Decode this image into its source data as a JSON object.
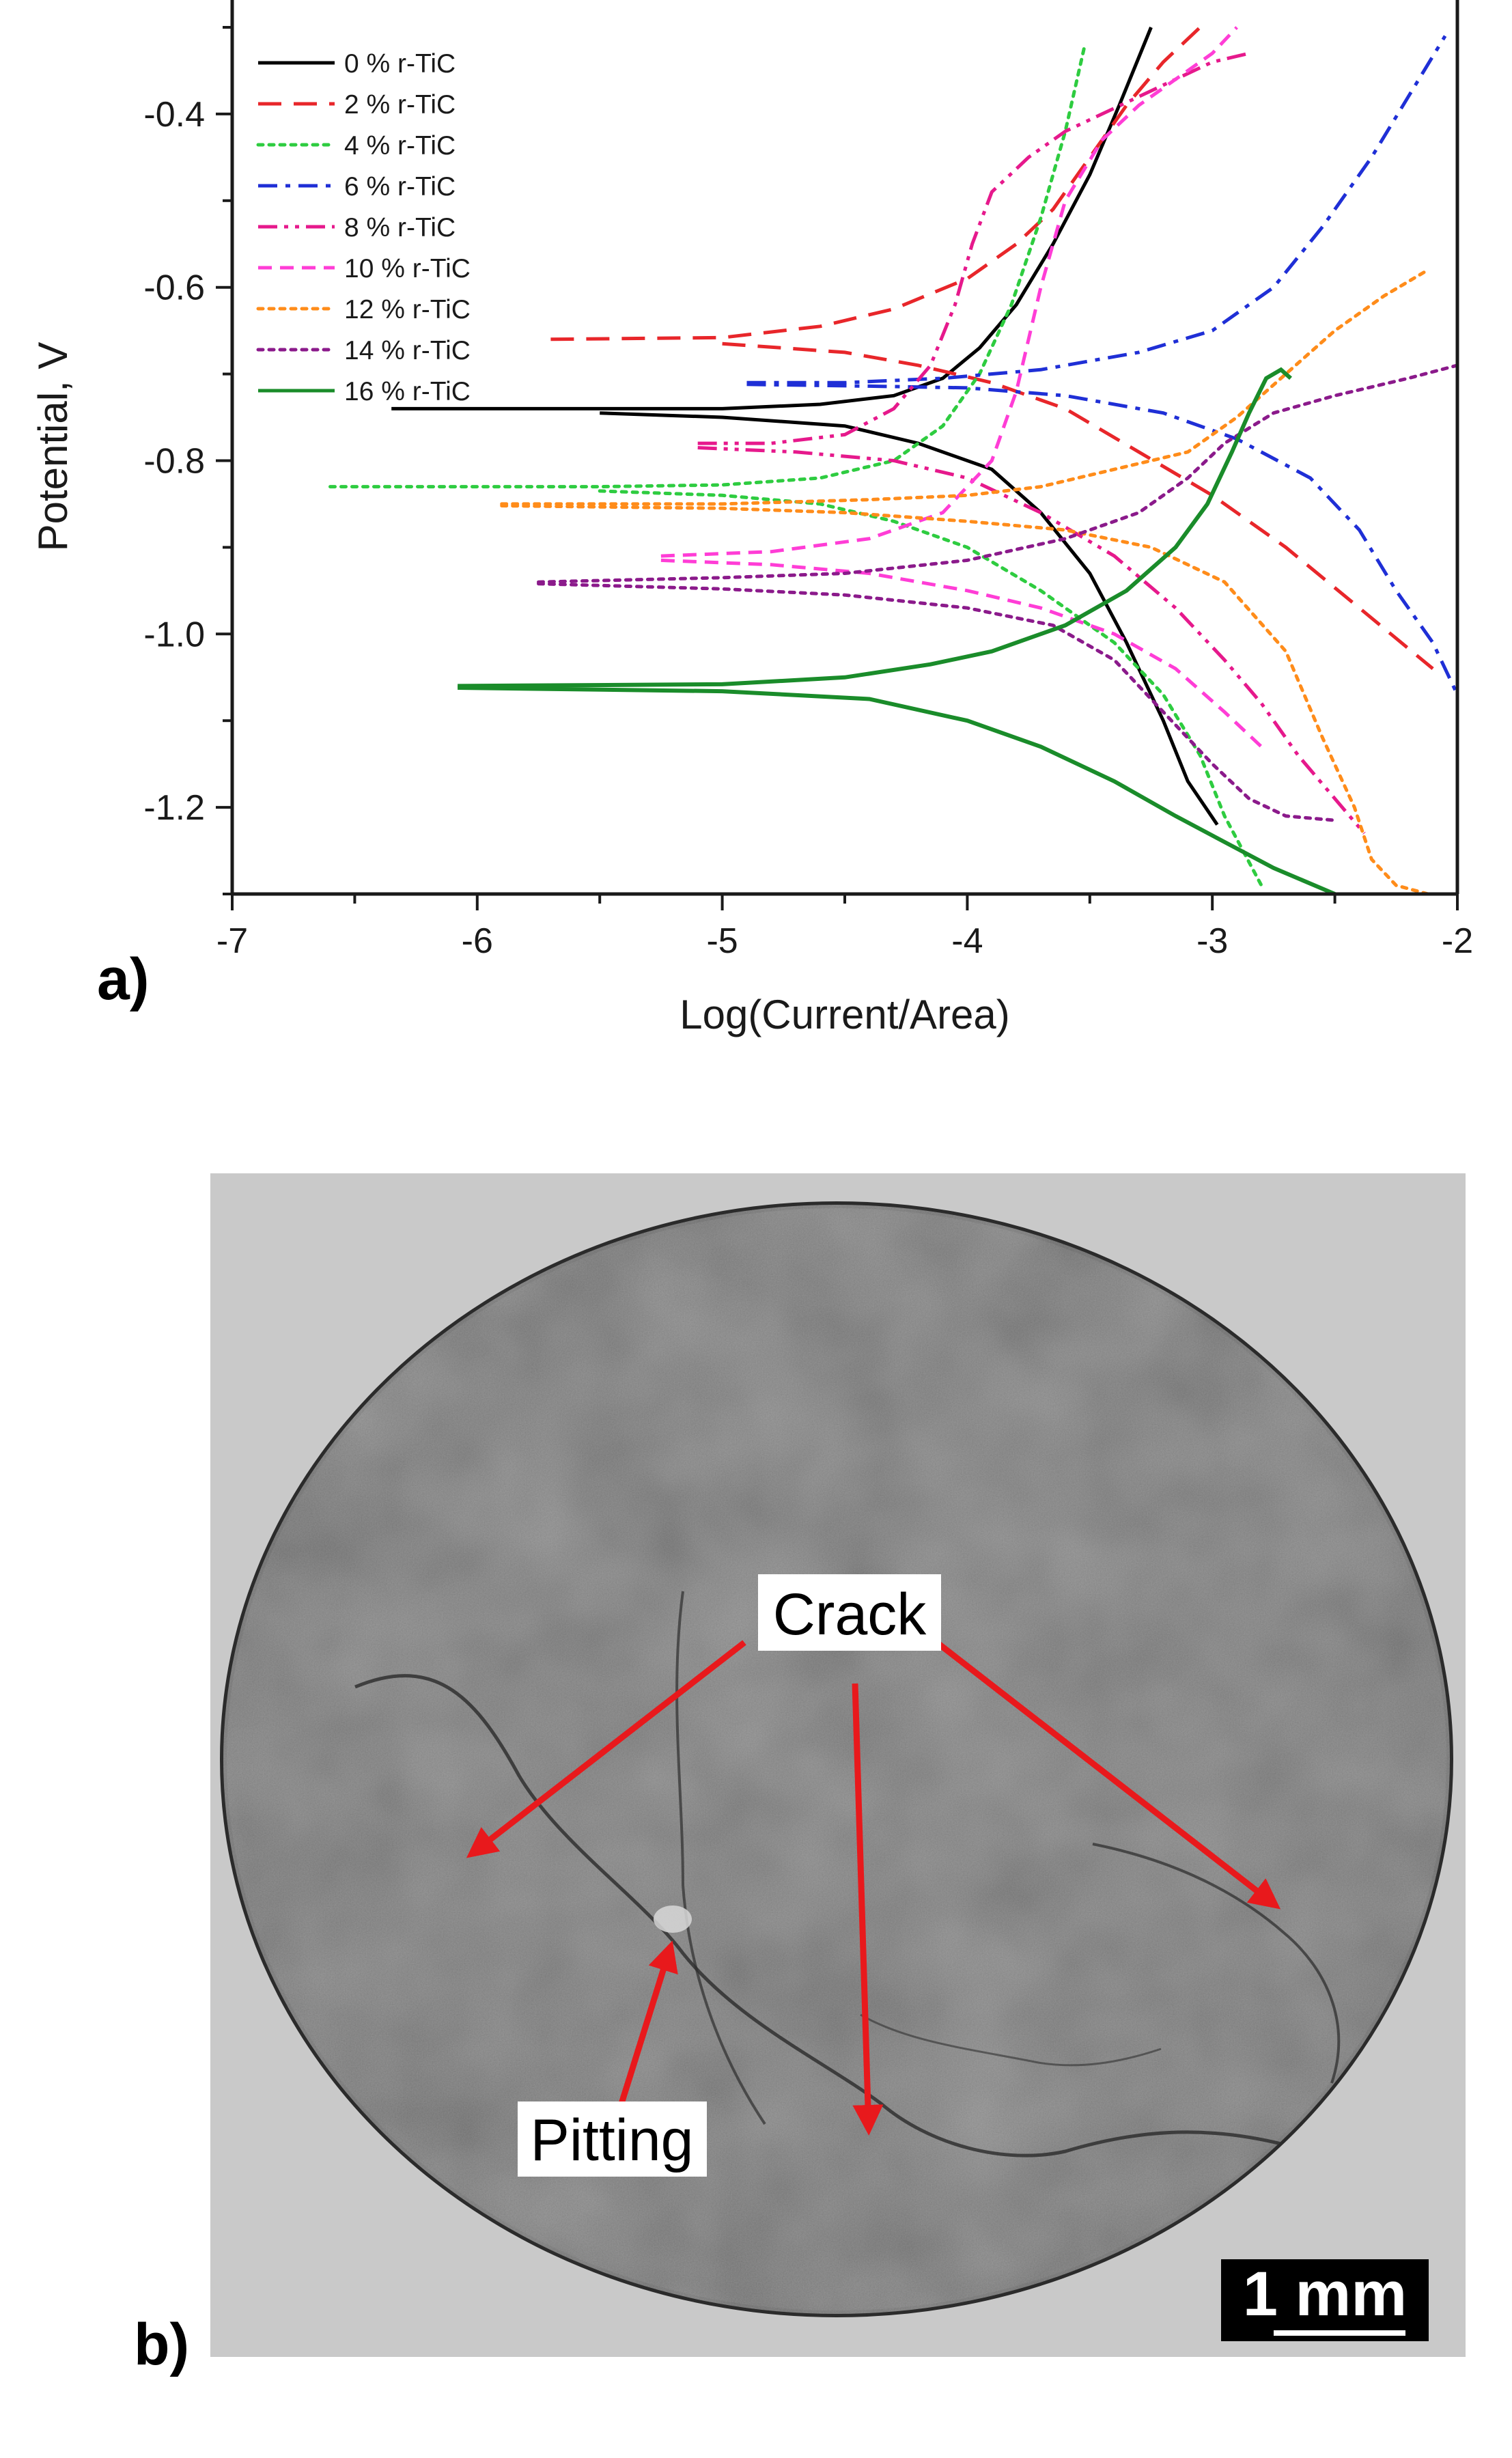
{
  "figure": {
    "panel_a_label": "a)",
    "panel_b_label": "b)"
  },
  "chart_data": {
    "type": "line",
    "title": "",
    "xlabel": "Log(Current/Area)",
    "ylabel": "Potential, V",
    "xlim": [
      -7,
      -2
    ],
    "ylim": [
      -1.3,
      -0.3
    ],
    "xticks": [
      -7,
      -6,
      -5,
      -4,
      -3,
      -2
    ],
    "yticks": [
      -1.2,
      -1.0,
      -0.8,
      -0.6,
      -0.4
    ],
    "ytick_labels": [
      "-1.2",
      "-1.0",
      "-0.8",
      "-0.6",
      "-0.4"
    ],
    "legend_position": "top-left",
    "grid": false,
    "series": [
      {
        "name": "0 % r-TiC",
        "color": "#000000",
        "dash": "solid",
        "anodic": [
          [
            -6.35,
            -0.74
          ],
          [
            -5.5,
            -0.74
          ],
          [
            -5.0,
            -0.74
          ],
          [
            -4.6,
            -0.735
          ],
          [
            -4.3,
            -0.725
          ],
          [
            -4.1,
            -0.705
          ],
          [
            -3.95,
            -0.67
          ],
          [
            -3.8,
            -0.62
          ],
          [
            -3.65,
            -0.55
          ],
          [
            -3.5,
            -0.47
          ],
          [
            -3.38,
            -0.39
          ],
          [
            -3.25,
            -0.3
          ]
        ],
        "cathodic": [
          [
            -5.5,
            -0.745
          ],
          [
            -5.0,
            -0.75
          ],
          [
            -4.5,
            -0.76
          ],
          [
            -4.2,
            -0.78
          ],
          [
            -3.9,
            -0.81
          ],
          [
            -3.7,
            -0.86
          ],
          [
            -3.5,
            -0.93
          ],
          [
            -3.35,
            -1.01
          ],
          [
            -3.2,
            -1.1
          ],
          [
            -3.1,
            -1.17
          ],
          [
            -2.98,
            -1.22
          ]
        ]
      },
      {
        "name": "2 % r-TiC",
        "color": "#e8262a",
        "dash": "long-dash",
        "anodic": [
          [
            -5.7,
            -0.66
          ],
          [
            -5.0,
            -0.658
          ],
          [
            -4.6,
            -0.645
          ],
          [
            -4.3,
            -0.625
          ],
          [
            -4.0,
            -0.59
          ],
          [
            -3.8,
            -0.55
          ],
          [
            -3.65,
            -0.51
          ],
          [
            -3.5,
            -0.45
          ],
          [
            -3.35,
            -0.39
          ],
          [
            -3.2,
            -0.34
          ],
          [
            -3.05,
            -0.3
          ]
        ],
        "cathodic": [
          [
            -5.0,
            -0.665
          ],
          [
            -4.5,
            -0.675
          ],
          [
            -4.2,
            -0.69
          ],
          [
            -3.9,
            -0.71
          ],
          [
            -3.6,
            -0.74
          ],
          [
            -3.3,
            -0.79
          ],
          [
            -3.0,
            -0.84
          ],
          [
            -2.7,
            -0.9
          ],
          [
            -2.4,
            -0.97
          ],
          [
            -2.1,
            -1.04
          ]
        ]
      },
      {
        "name": "4 % r-TiC",
        "color": "#2ecc40",
        "dash": "dot",
        "anodic": [
          [
            -6.6,
            -0.83
          ],
          [
            -5.5,
            -0.83
          ],
          [
            -5.0,
            -0.828
          ],
          [
            -4.6,
            -0.82
          ],
          [
            -4.3,
            -0.8
          ],
          [
            -4.1,
            -0.76
          ],
          [
            -3.95,
            -0.7
          ],
          [
            -3.82,
            -0.62
          ],
          [
            -3.7,
            -0.52
          ],
          [
            -3.6,
            -0.42
          ],
          [
            -3.52,
            -0.32
          ]
        ],
        "cathodic": [
          [
            -5.5,
            -0.835
          ],
          [
            -5.0,
            -0.84
          ],
          [
            -4.6,
            -0.85
          ],
          [
            -4.3,
            -0.87
          ],
          [
            -4.0,
            -0.9
          ],
          [
            -3.7,
            -0.95
          ],
          [
            -3.4,
            -1.01
          ],
          [
            -3.2,
            -1.07
          ],
          [
            -3.05,
            -1.14
          ],
          [
            -2.95,
            -1.21
          ],
          [
            -2.8,
            -1.29
          ]
        ]
      },
      {
        "name": "6 % r-TiC",
        "color": "#1f2fd6",
        "dash": "dash-dot",
        "anodic": [
          [
            -4.9,
            -0.71
          ],
          [
            -4.5,
            -0.71
          ],
          [
            -4.1,
            -0.705
          ],
          [
            -3.7,
            -0.695
          ],
          [
            -3.3,
            -0.675
          ],
          [
            -3.0,
            -0.65
          ],
          [
            -2.75,
            -0.6
          ],
          [
            -2.55,
            -0.53
          ],
          [
            -2.35,
            -0.45
          ],
          [
            -2.2,
            -0.38
          ],
          [
            -2.05,
            -0.31
          ]
        ],
        "cathodic": [
          [
            -4.9,
            -0.712
          ],
          [
            -4.4,
            -0.714
          ],
          [
            -4.0,
            -0.716
          ],
          [
            -3.6,
            -0.725
          ],
          [
            -3.2,
            -0.745
          ],
          [
            -2.9,
            -0.775
          ],
          [
            -2.6,
            -0.82
          ],
          [
            -2.4,
            -0.88
          ],
          [
            -2.25,
            -0.95
          ],
          [
            -2.1,
            -1.01
          ],
          [
            -2.0,
            -1.07
          ]
        ]
      },
      {
        "name": "8 % r-TiC",
        "color": "#e6198c",
        "dash": "dash-dot-dot",
        "anodic": [
          [
            -5.1,
            -0.78
          ],
          [
            -4.8,
            -0.78
          ],
          [
            -4.5,
            -0.77
          ],
          [
            -4.3,
            -0.74
          ],
          [
            -4.15,
            -0.69
          ],
          [
            -4.05,
            -0.62
          ],
          [
            -3.98,
            -0.55
          ],
          [
            -3.9,
            -0.49
          ],
          [
            -3.75,
            -0.45
          ],
          [
            -3.6,
            -0.42
          ],
          [
            -3.45,
            -0.4
          ],
          [
            -3.3,
            -0.38
          ],
          [
            -3.15,
            -0.36
          ],
          [
            -3.0,
            -0.34
          ],
          [
            -2.85,
            -0.33
          ]
        ],
        "cathodic": [
          [
            -5.1,
            -0.785
          ],
          [
            -4.7,
            -0.79
          ],
          [
            -4.3,
            -0.8
          ],
          [
            -4.0,
            -0.82
          ],
          [
            -3.7,
            -0.86
          ],
          [
            -3.4,
            -0.91
          ],
          [
            -3.15,
            -0.97
          ],
          [
            -2.95,
            -1.03
          ],
          [
            -2.8,
            -1.08
          ],
          [
            -2.65,
            -1.14
          ],
          [
            -2.5,
            -1.19
          ],
          [
            -2.38,
            -1.23
          ]
        ]
      },
      {
        "name": "10 % r-TiC",
        "color": "#ff3dd6",
        "dash": "dash",
        "anodic": [
          [
            -5.25,
            -0.91
          ],
          [
            -4.8,
            -0.905
          ],
          [
            -4.4,
            -0.89
          ],
          [
            -4.1,
            -0.86
          ],
          [
            -3.9,
            -0.8
          ],
          [
            -3.8,
            -0.72
          ],
          [
            -3.7,
            -0.6
          ],
          [
            -3.6,
            -0.5
          ],
          [
            -3.45,
            -0.43
          ],
          [
            -3.3,
            -0.39
          ],
          [
            -3.15,
            -0.36
          ],
          [
            -3.0,
            -0.33
          ],
          [
            -2.9,
            -0.3
          ]
        ],
        "cathodic": [
          [
            -5.25,
            -0.915
          ],
          [
            -4.8,
            -0.92
          ],
          [
            -4.4,
            -0.93
          ],
          [
            -4.0,
            -0.95
          ],
          [
            -3.7,
            -0.97
          ],
          [
            -3.4,
            -1.0
          ],
          [
            -3.15,
            -1.04
          ],
          [
            -2.95,
            -1.09
          ],
          [
            -2.8,
            -1.13
          ]
        ]
      },
      {
        "name": "12 % r-TiC",
        "color": "#ff8c1a",
        "dash": "dot",
        "anodic": [
          [
            -5.9,
            -0.85
          ],
          [
            -5.0,
            -0.85
          ],
          [
            -4.4,
            -0.845
          ],
          [
            -4.0,
            -0.84
          ],
          [
            -3.7,
            -0.83
          ],
          [
            -3.4,
            -0.81
          ],
          [
            -3.1,
            -0.79
          ],
          [
            -2.9,
            -0.75
          ],
          [
            -2.7,
            -0.7
          ],
          [
            -2.5,
            -0.65
          ],
          [
            -2.3,
            -0.61
          ],
          [
            -2.12,
            -0.58
          ]
        ],
        "cathodic": [
          [
            -5.9,
            -0.852
          ],
          [
            -5.0,
            -0.855
          ],
          [
            -4.5,
            -0.86
          ],
          [
            -4.0,
            -0.87
          ],
          [
            -3.6,
            -0.88
          ],
          [
            -3.25,
            -0.9
          ],
          [
            -2.95,
            -0.94
          ],
          [
            -2.7,
            -1.02
          ],
          [
            -2.55,
            -1.12
          ],
          [
            -2.42,
            -1.2
          ],
          [
            -2.35,
            -1.26
          ],
          [
            -2.25,
            -1.29
          ],
          [
            -2.12,
            -1.3
          ]
        ]
      },
      {
        "name": "14 % r-TiC",
        "color": "#8b1a8b",
        "dash": "dot",
        "anodic": [
          [
            -5.75,
            -0.94
          ],
          [
            -5.0,
            -0.935
          ],
          [
            -4.5,
            -0.93
          ],
          [
            -4.0,
            -0.915
          ],
          [
            -3.6,
            -0.89
          ],
          [
            -3.3,
            -0.86
          ],
          [
            -3.1,
            -0.82
          ],
          [
            -2.95,
            -0.78
          ],
          [
            -2.75,
            -0.745
          ],
          [
            -2.5,
            -0.725
          ],
          [
            -2.2,
            -0.705
          ],
          [
            -2.0,
            -0.69
          ]
        ],
        "cathodic": [
          [
            -5.75,
            -0.942
          ],
          [
            -5.0,
            -0.948
          ],
          [
            -4.5,
            -0.955
          ],
          [
            -4.0,
            -0.97
          ],
          [
            -3.65,
            -0.99
          ],
          [
            -3.4,
            -1.03
          ],
          [
            -3.2,
            -1.09
          ],
          [
            -3.0,
            -1.15
          ],
          [
            -2.85,
            -1.19
          ],
          [
            -2.7,
            -1.21
          ],
          [
            -2.5,
            -1.215
          ]
        ]
      },
      {
        "name": "16 % r-TiC",
        "color": "#1a8c2a",
        "dash": "solid",
        "anodic": [
          [
            -6.08,
            -1.06
          ],
          [
            -5.0,
            -1.058
          ],
          [
            -4.5,
            -1.05
          ],
          [
            -4.15,
            -1.035
          ],
          [
            -3.9,
            -1.02
          ],
          [
            -3.6,
            -0.99
          ],
          [
            -3.35,
            -0.95
          ],
          [
            -3.15,
            -0.9
          ],
          [
            -3.02,
            -0.85
          ],
          [
            -2.92,
            -0.79
          ],
          [
            -2.85,
            -0.745
          ],
          [
            -2.78,
            -0.705
          ],
          [
            -2.72,
            -0.695
          ],
          [
            -2.68,
            -0.705
          ]
        ],
        "cathodic": [
          [
            -6.08,
            -1.062
          ],
          [
            -5.0,
            -1.066
          ],
          [
            -4.4,
            -1.075
          ],
          [
            -4.0,
            -1.1
          ],
          [
            -3.7,
            -1.13
          ],
          [
            -3.4,
            -1.17
          ],
          [
            -3.15,
            -1.21
          ],
          [
            -2.95,
            -1.24
          ],
          [
            -2.75,
            -1.27
          ],
          [
            -2.5,
            -1.3
          ]
        ]
      }
    ]
  },
  "micrograph": {
    "crack_label": "Crack",
    "pitting_label": "Pitting",
    "scale_bar_label": "1 mm",
    "arrow_color": "#e8191c"
  }
}
